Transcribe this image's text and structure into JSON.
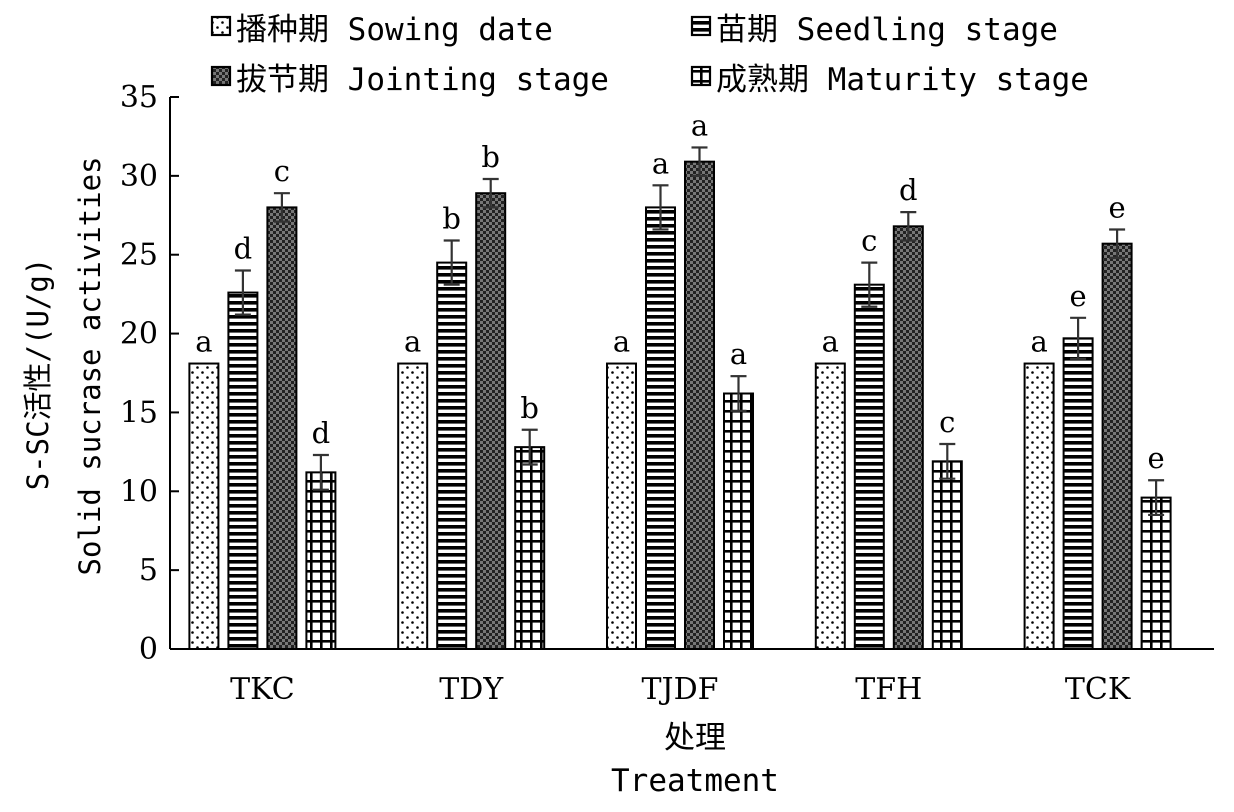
{
  "chart_data": {
    "type": "bar",
    "categories": [
      "TKC",
      "TDY",
      "TJDF",
      "TFH",
      "TCK"
    ],
    "series": [
      {
        "name": "播种期 Sowing date",
        "pattern": "dots",
        "values": [
          18.1,
          18.1,
          18.1,
          18.1,
          18.1
        ],
        "errors": [
          0,
          0,
          0,
          0,
          0
        ],
        "letters": [
          "a",
          "a",
          "a",
          "a",
          "a"
        ]
      },
      {
        "name": "苗期 Seedling stage",
        "pattern": "hlines",
        "values": [
          22.6,
          24.5,
          28.0,
          23.1,
          19.7
        ],
        "errors": [
          1.4,
          1.4,
          1.4,
          1.4,
          1.3
        ],
        "letters": [
          "d",
          "b",
          "a",
          "c",
          "e"
        ]
      },
      {
        "name": "拔节期 Jointing stage",
        "pattern": "checker",
        "values": [
          28.0,
          28.9,
          30.9,
          26.8,
          25.7
        ],
        "errors": [
          0.9,
          0.9,
          0.9,
          0.9,
          0.9
        ],
        "letters": [
          "c",
          "b",
          "a",
          "d",
          "e"
        ]
      },
      {
        "name": "成熟期 Maturity stage",
        "pattern": "grid",
        "values": [
          11.2,
          12.8,
          16.2,
          11.9,
          9.6
        ],
        "errors": [
          1.1,
          1.1,
          1.1,
          1.1,
          1.1
        ],
        "letters": [
          "d",
          "b",
          "a",
          "c",
          "e"
        ]
      }
    ],
    "yticks": [
      "0",
      "5",
      "10",
      "15",
      "20",
      "25",
      "30",
      "35"
    ],
    "ylim": [
      0,
      35
    ],
    "ylabel_line1": "S-SC活性/(U/g)",
    "ylabel_line2": "Solid sucrase activities",
    "xlabel_line1": "处理",
    "xlabel_line2": "Treatment",
    "grid": false,
    "legend_position": "top"
  }
}
